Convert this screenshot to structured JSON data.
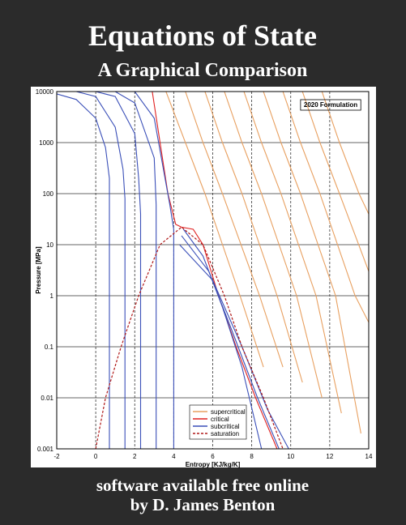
{
  "cover": {
    "title": "Equations of State",
    "subtitle": "A Graphical Comparison",
    "footer_line1": "software available free online",
    "footer_line2": "by D. James Benton"
  },
  "chart_data": {
    "type": "line",
    "annotation": "2020 Formulation",
    "x_label": "Entropy [KJ/kg/K]",
    "y_label": "Pressure [MPa]",
    "xlim": [
      -2,
      14
    ],
    "xticks": [
      -2,
      0,
      2,
      4,
      6,
      8,
      10,
      12,
      14
    ],
    "ylim": [
      0.001,
      10000
    ],
    "yticks": [
      0.001,
      0.01,
      0.1,
      1,
      10,
      100,
      1000,
      10000
    ],
    "log_y": true,
    "grid": true,
    "legend": "lower-center",
    "series": [
      {
        "name": "supercritical",
        "color": "#e8a060",
        "dashed": false,
        "lines": [
          {
            "x": [
              3.6,
              4.6,
              5.6,
              7.4,
              8.6
            ],
            "y": [
              10000,
              1000,
              100,
              1,
              0.04
            ]
          },
          {
            "x": [
              4.6,
              5.5,
              6.5,
              8.4,
              9.6
            ],
            "y": [
              10000,
              1000,
              100,
              1,
              0.04
            ]
          },
          {
            "x": [
              5.6,
              6.5,
              7.5,
              9.3,
              10.6
            ],
            "y": [
              10000,
              1000,
              100,
              1,
              0.02
            ]
          },
          {
            "x": [
              6.6,
              7.5,
              8.5,
              10.3,
              11.6
            ],
            "y": [
              10000,
              1000,
              100,
              1,
              0.01
            ]
          },
          {
            "x": [
              7.6,
              8.5,
              9.5,
              11.3,
              12.6
            ],
            "y": [
              10000,
              1000,
              100,
              1,
              0.005
            ]
          },
          {
            "x": [
              8.6,
              9.5,
              10.5,
              12.3,
              13.6
            ],
            "y": [
              10000,
              1000,
              100,
              1,
              0.002
            ]
          },
          {
            "x": [
              9.6,
              10.5,
              11.5,
              13.3,
              14
            ],
            "y": [
              10000,
              1000,
              100,
              1,
              0.3
            ]
          },
          {
            "x": [
              10.6,
              11.5,
              12.5,
              14
            ],
            "y": [
              10000,
              1000,
              100,
              3
            ]
          },
          {
            "x": [
              11.6,
              12.5,
              13.5,
              14
            ],
            "y": [
              10000,
              1000,
              100,
              40
            ]
          }
        ]
      },
      {
        "name": "critical",
        "color": "#e02020",
        "dashed": false,
        "lines": [
          {
            "x": [
              2.9,
              3.3,
              3.7,
              4.1,
              4.4,
              5.0,
              5.5,
              6.3,
              7.2,
              8.2,
              9.3
            ],
            "y": [
              10000,
              1000,
              100,
              25,
              22,
              20,
              10,
              1,
              0.1,
              0.01,
              0.001
            ]
          }
        ]
      },
      {
        "name": "subcritical",
        "color": "#3a4fb8",
        "dashed": false,
        "lines": [
          {
            "x": [
              -2,
              -1,
              0,
              0.5,
              0.7,
              0.7
            ],
            "y": [
              9000,
              7000,
              3000,
              800,
              200,
              0.001
            ]
          },
          {
            "x": [
              -1,
              0,
              1,
              1.4,
              1.5,
              1.5
            ],
            "y": [
              10000,
              8000,
              2000,
              300,
              80,
              0.001
            ]
          },
          {
            "x": [
              0,
              1,
              2,
              2.2,
              2.3,
              2.3
            ],
            "y": [
              10000,
              8000,
              1500,
              200,
              40,
              0.001
            ]
          },
          {
            "x": [
              1,
              2,
              3,
              3.1,
              3.1
            ],
            "y": [
              10000,
              6000,
              500,
              60,
              0.001
            ]
          },
          {
            "x": [
              2,
              3,
              3.8,
              4.0,
              4.0
            ],
            "y": [
              10000,
              3000,
              60,
              20,
              0.001
            ]
          },
          {
            "x": [
              4.5,
              5.5,
              6.5,
              7.5,
              8.5
            ],
            "y": [
              20,
              6,
              0.6,
              0.04,
              0.001
            ]
          },
          {
            "x": [
              4.4,
              5.8,
              7.0,
              8.3,
              9.4
            ],
            "y": [
              15,
              3,
              0.2,
              0.01,
              0.001
            ]
          },
          {
            "x": [
              4.3,
              6.0,
              7.5,
              8.8,
              9.9
            ],
            "y": [
              10,
              2,
              0.1,
              0.006,
              0.001
            ]
          }
        ]
      },
      {
        "name": "saturation",
        "color": "#b01818",
        "dashed": true,
        "lines": [
          {
            "x": [
              0,
              0.5,
              1.3,
              2.2,
              3.3,
              4.4,
              5.5,
              6.6,
              7.5,
              8.6,
              9.6
            ],
            "y": [
              0.001,
              0.01,
              0.1,
              1,
              10,
              22,
              10,
              1,
              0.1,
              0.01,
              0.001
            ]
          }
        ]
      }
    ]
  }
}
